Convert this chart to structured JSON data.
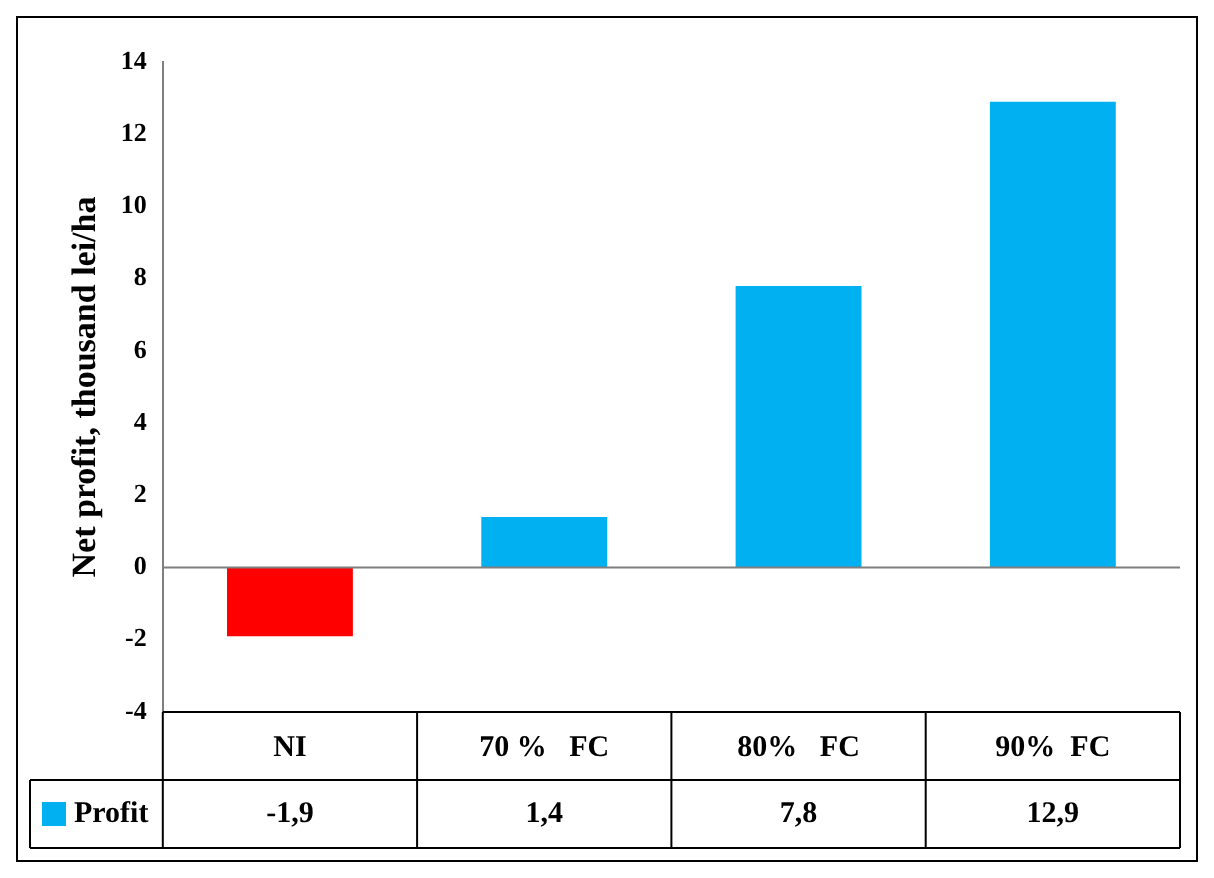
{
  "chart_data": {
    "type": "bar",
    "ylabel": "Net profit, thousand lei/ha",
    "categories": [
      "NI",
      "70 %   FC",
      "80%   FC",
      "90%  FC"
    ],
    "series": [
      {
        "name": "Profit",
        "color": "#00b0f0",
        "colors": [
          "#ff0000",
          "#00b0f0",
          "#00b0f0",
          "#00b0f0"
        ],
        "values": [
          -1.9,
          1.4,
          7.8,
          12.9
        ],
        "value_labels": [
          "-1,9",
          "1,4",
          "7,8",
          "12,9"
        ]
      }
    ],
    "ylim": [
      -4,
      14
    ],
    "yticks": [
      -4,
      -2,
      0,
      2,
      4,
      6,
      8,
      10,
      12,
      14
    ]
  }
}
